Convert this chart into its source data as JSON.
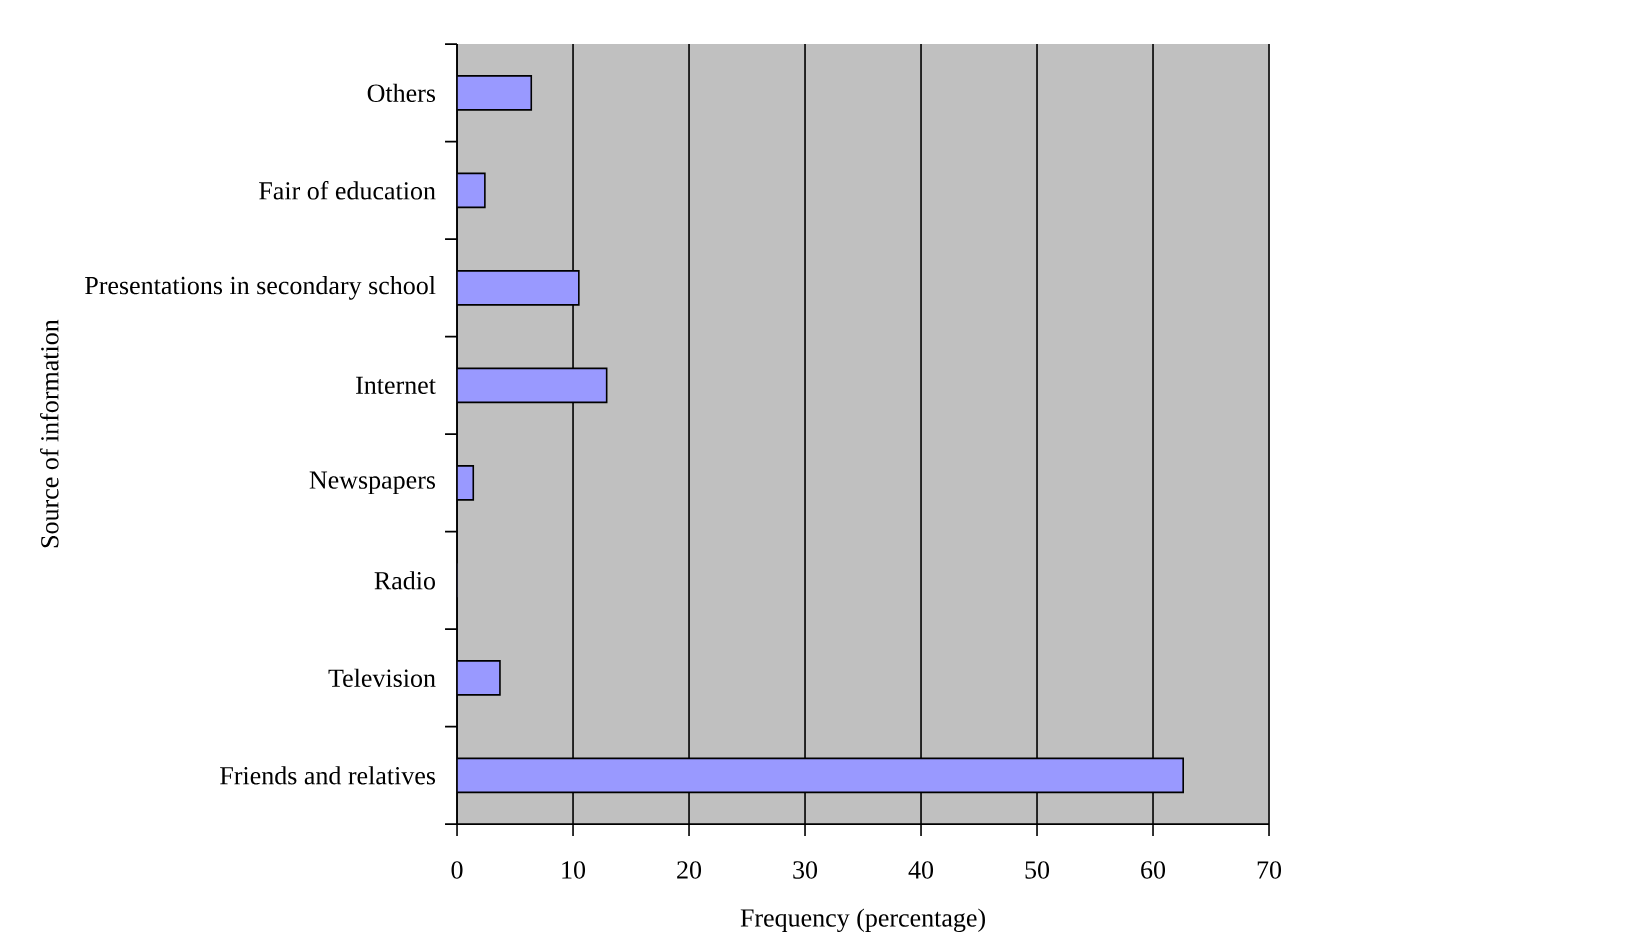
{
  "chart_data": {
    "type": "bar",
    "orientation": "horizontal",
    "categories": [
      "Others",
      "Fair of education",
      "Presentations in secondary school",
      "Internet",
      "Newspapers",
      "Radio",
      "Television",
      "Friends and relatives"
    ],
    "values": [
      6.4,
      2.4,
      10.5,
      12.9,
      1.4,
      0,
      3.7,
      62.6
    ],
    "color": "#9999ff",
    "xlabel": "Frequency (percentage)",
    "ylabel": "Source of information",
    "xlim": [
      0,
      70
    ],
    "xticks": [
      0,
      10,
      20,
      30,
      40,
      50,
      60,
      70
    ],
    "grid": "x"
  }
}
